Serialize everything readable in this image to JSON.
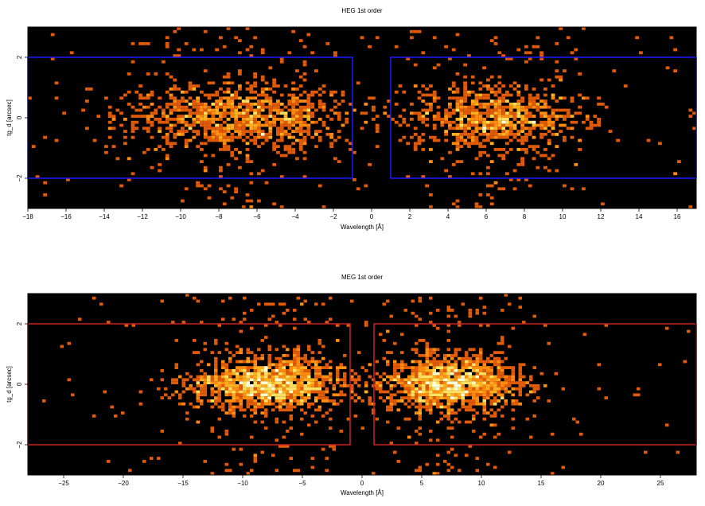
{
  "chart_data": [
    {
      "type": "heatmap",
      "title": "HEG 1st order",
      "xlabel": "Wavelength [Å]",
      "ylabel": "tg_d [arcsec]",
      "xlim": [
        -18,
        17
      ],
      "ylim": [
        -3,
        3
      ],
      "xticks": [
        -18,
        -16,
        -14,
        -12,
        -10,
        -8,
        -6,
        -4,
        -2,
        0,
        2,
        4,
        6,
        8,
        10,
        12,
        14,
        16
      ],
      "yticks": [
        -2,
        0,
        2
      ],
      "regions": [
        {
          "x": [
            -18,
            -1
          ],
          "y": [
            -2,
            2
          ]
        },
        {
          "x": [
            1,
            17
          ],
          "y": [
            -2,
            2
          ]
        }
      ],
      "region_color": "#1a1aff",
      "background": "#000000",
      "clusters": [
        {
          "x_center": -7,
          "x_sigma": 3.0,
          "y_sigma": 0.55,
          "count": 1100
        },
        {
          "x_center": 6.5,
          "x_sigma": 2.3,
          "y_sigma": 0.55,
          "count": 900
        }
      ],
      "bin": 0.2
    },
    {
      "type": "heatmap",
      "title": "MEG 1st order",
      "xlabel": "Wavelength [Å]",
      "ylabel": "tg_d [arcsec]",
      "xlim": [
        -28,
        28
      ],
      "ylim": [
        -3,
        3
      ],
      "xticks": [
        -25,
        -20,
        -15,
        -10,
        -5,
        0,
        5,
        10,
        15,
        20,
        25
      ],
      "yticks": [
        -2,
        0,
        2
      ],
      "regions": [
        {
          "x": [
            -28,
            -1
          ],
          "y": [
            -2,
            2
          ]
        },
        {
          "x": [
            1,
            28
          ],
          "y": [
            -2,
            2
          ]
        }
      ],
      "region_color": "#cc2222",
      "background": "#000000",
      "clusters": [
        {
          "x_center": -8,
          "x_sigma": 3.2,
          "y_sigma": 0.45,
          "count": 1400
        },
        {
          "x_center": 7.5,
          "x_sigma": 3.0,
          "y_sigma": 0.45,
          "count": 1400
        }
      ],
      "bin": 0.3
    }
  ]
}
